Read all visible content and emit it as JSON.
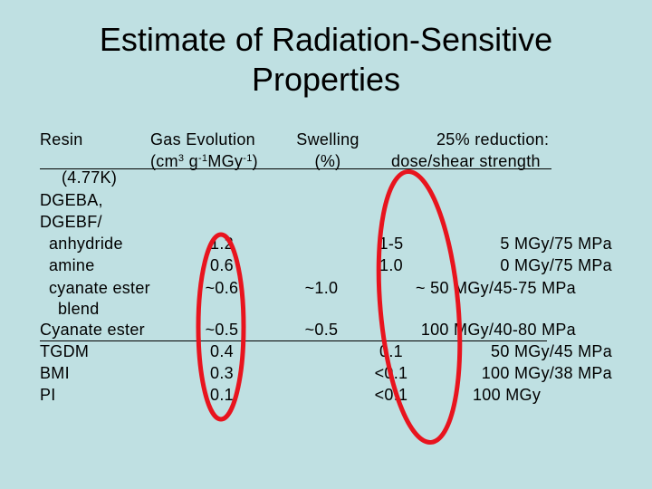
{
  "title": {
    "line1": "Estimate of Radiation-Sensitive",
    "line2": "Properties"
  },
  "headers": {
    "resin": "Resin",
    "resin_sub": "(4.77K)",
    "gas_line1": "Gas Evolution",
    "gas_sub_cm": "(cm",
    "gas_sub_exp1": "3",
    "gas_sub_g": " g",
    "gas_sub_exp2": "-1",
    "gas_sub_mgy": "MGy",
    "gas_sub_exp3": "-1",
    "gas_sub_end": ")",
    "swelling_line1": "Swelling",
    "swelling_line2": "(%)",
    "reduction_line1": "25% reduction:",
    "reduction_line2": "dose/shear strength"
  },
  "rows": {
    "dgeba": "DGEBA,",
    "dgebf": "DGEBF/",
    "anhydride": "anhydride",
    "amine": "amine",
    "cyanate_ester": "cyanate ester",
    "blend": "blend",
    "cyanate": "Cyanate ester",
    "tgdm": "TGDM",
    "bmi": "BMI",
    "pi": "PI"
  },
  "gas": {
    "anhydride": "1.2",
    "amine": "0.6",
    "cyanate_ester": "~0.6",
    "cyanate": "~0.5",
    "tgdm": "0.4",
    "bmi": "0.3",
    "pi": "0.1"
  },
  "swelling": {
    "cyanate_ester": "~1.0",
    "cyanate": "~0.5"
  },
  "swell_pct": {
    "anhydride": "1-5",
    "amine": "1.0",
    "tgdm": "0.1",
    "bmi": "<0.1",
    "pi": "<0.1"
  },
  "dose": {
    "anhydride": "5 MGy/75 MPa",
    "amine": "0 MGy/75 MPa",
    "cyanate_ester": "~ 50 MGy/45-75 MPa",
    "cyanate": "100 MGy/40-80 MPa",
    "tgdm": "50 MGy/45 MPa",
    "bmi": "100 MGy/38 MPa",
    "pi": "100 MGy"
  },
  "highlight_color": "#e8141e"
}
